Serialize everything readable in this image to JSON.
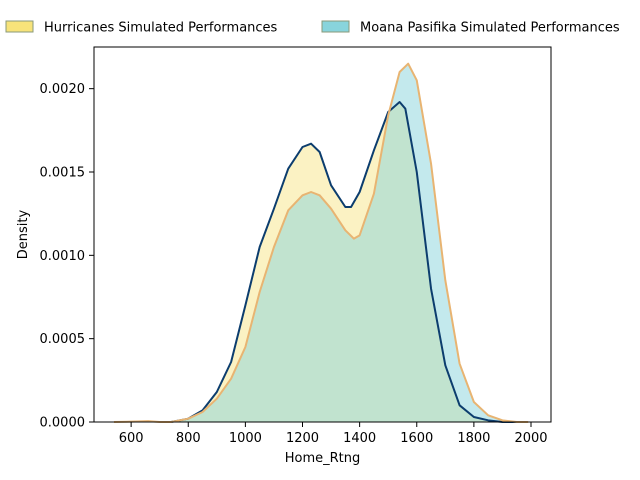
{
  "chart_data": {
    "type": "area",
    "xlabel": "Home_Rtng",
    "ylabel": "Density",
    "xlim": [
      470,
      2070
    ],
    "ylim": [
      0,
      0.00225
    ],
    "x_ticks": [
      600,
      800,
      1000,
      1200,
      1400,
      1600,
      1800,
      2000
    ],
    "x_tick_labels": [
      "600",
      "800",
      "1000",
      "1200",
      "1400",
      "1600",
      "1800",
      "2000"
    ],
    "y_ticks": [
      0,
      0.0005,
      0.001,
      0.0015,
      0.002
    ],
    "y_tick_labels": [
      "0.0000",
      "0.0005",
      "0.0010",
      "0.0015",
      "0.0020"
    ],
    "grid": false,
    "legend_position": "top, outside plot",
    "legend": [
      {
        "label": "Hurricanes Simulated Performances",
        "fill": "#f7e37a",
        "edge": "#8a9a7a"
      },
      {
        "label": "Moana Pasifika Simulated Performances",
        "fill": "#88d4dc",
        "edge": "#8a9a7a"
      }
    ],
    "series": [
      {
        "name": "Hurricanes Simulated Performances",
        "fill": "#f7e37a",
        "fill_opacity": 0.45,
        "line": "#0c3d6e",
        "x": [
          740,
          800,
          850,
          900,
          950,
          1000,
          1050,
          1100,
          1150,
          1200,
          1230,
          1260,
          1300,
          1350,
          1370,
          1400,
          1450,
          1500,
          1540,
          1560,
          1600,
          1650,
          1700,
          1750,
          1800,
          1850,
          1900,
          1960
        ],
        "y": [
          0,
          2e-05,
          7e-05,
          0.00018,
          0.00036,
          0.0007,
          0.00105,
          0.00128,
          0.00152,
          0.00165,
          0.00167,
          0.00162,
          0.00142,
          0.00129,
          0.00129,
          0.00138,
          0.00163,
          0.00186,
          0.00192,
          0.00188,
          0.0015,
          0.0008,
          0.00034,
          0.0001,
          3e-05,
          1e-05,
          0.0,
          0
        ]
      },
      {
        "name": "Moana Pasifika Simulated Performances",
        "fill": "#88d4dc",
        "fill_opacity": 0.5,
        "line": "#e8b472",
        "x": [
          540,
          600,
          660,
          700,
          740,
          800,
          850,
          900,
          950,
          1000,
          1050,
          1100,
          1150,
          1200,
          1230,
          1260,
          1300,
          1350,
          1380,
          1400,
          1450,
          1500,
          1540,
          1570,
          1600,
          1650,
          1700,
          1750,
          1800,
          1850,
          1900,
          1950,
          1990
        ],
        "y": [
          0,
          2e-06,
          5e-06,
          0.0,
          0.0,
          2e-05,
          6e-05,
          0.00014,
          0.00026,
          0.00045,
          0.00078,
          0.00105,
          0.00127,
          0.00136,
          0.00138,
          0.00136,
          0.00128,
          0.00115,
          0.0011,
          0.00112,
          0.00137,
          0.00184,
          0.0021,
          0.00215,
          0.00205,
          0.00155,
          0.00085,
          0.00035,
          0.00012,
          4e-05,
          1e-05,
          0.0,
          0
        ]
      }
    ]
  }
}
